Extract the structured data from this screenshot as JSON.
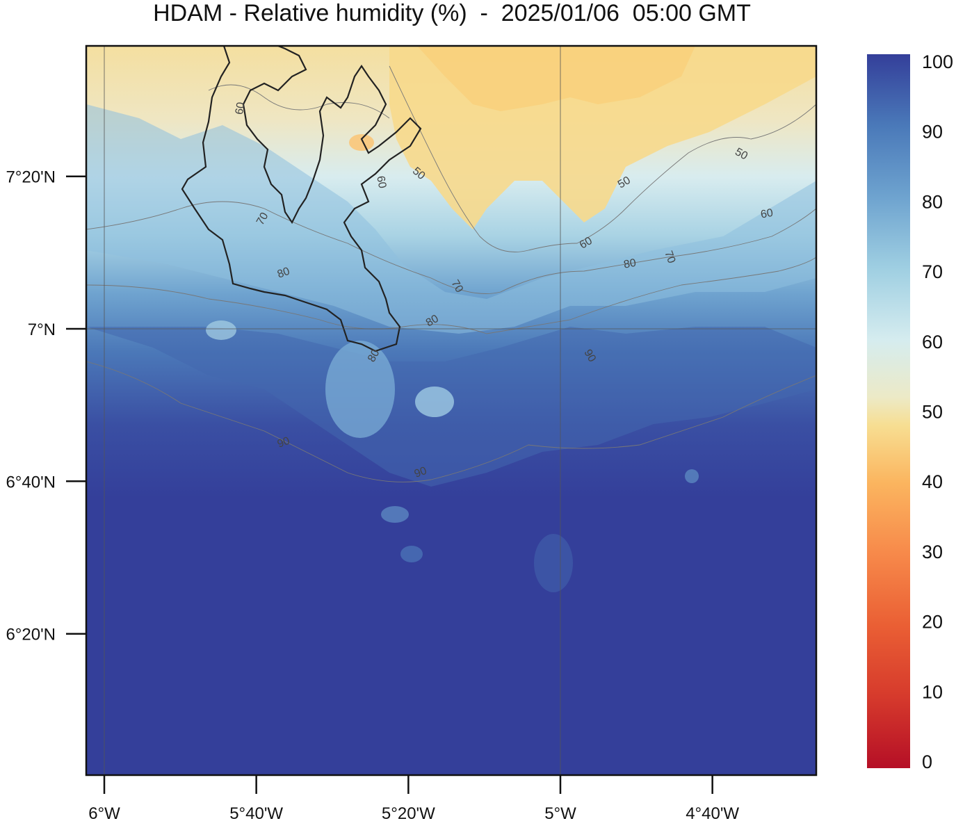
{
  "title": "HDAM - Relative humidity (%)  -  2025/01/06  05:00 GMT",
  "map": {
    "variable": "Relative humidity",
    "units": "%",
    "lon_ticks": [
      {
        "value": -6.0,
        "label": "6°W"
      },
      {
        "value": -5.6667,
        "label": "5°40'W"
      },
      {
        "value": -5.3333,
        "label": "5°20'W"
      },
      {
        "value": -5.0,
        "label": "5°W"
      },
      {
        "value": -4.6667,
        "label": "4°40'W"
      }
    ],
    "lat_ticks": [
      {
        "value": 7.3333,
        "label": "7°20'N"
      },
      {
        "value": 7.0,
        "label": "7°N"
      },
      {
        "value": 6.6667,
        "label": "6°40'N"
      },
      {
        "value": 6.3333,
        "label": "6°20'N"
      }
    ],
    "gridlines": {
      "lon": [
        -6.0,
        -5.0
      ],
      "lat": [
        7.0
      ]
    },
    "contour_labels": [
      {
        "text": "50"
      },
      {
        "text": "50"
      },
      {
        "text": "50"
      },
      {
        "text": "60"
      },
      {
        "text": "60"
      },
      {
        "text": "60"
      },
      {
        "text": "60"
      },
      {
        "text": "70"
      },
      {
        "text": "70"
      },
      {
        "text": "70"
      },
      {
        "text": "80"
      },
      {
        "text": "80"
      },
      {
        "text": "80"
      },
      {
        "text": "80"
      },
      {
        "text": "90"
      },
      {
        "text": "90"
      },
      {
        "text": "90"
      }
    ]
  },
  "colorbar": {
    "min": 0,
    "max": 100,
    "tick_labels": [
      "0",
      "10",
      "20",
      "30",
      "40",
      "50",
      "60",
      "70",
      "80",
      "90",
      "100"
    ],
    "colors": [
      "#b50f26",
      "#d63a2c",
      "#ea5f34",
      "#f7894a",
      "#fbb55f",
      "#f7de92",
      "#eceac7",
      "#d5ecef",
      "#9fcfe2",
      "#6ea3cf",
      "#4a79b9",
      "#343f9a"
    ]
  }
}
